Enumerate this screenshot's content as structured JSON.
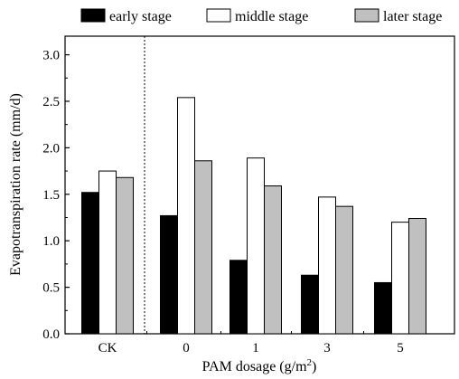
{
  "chart_data": {
    "type": "bar",
    "categories": [
      "CK",
      "0",
      "1",
      "3",
      "5"
    ],
    "series": [
      {
        "name": "early stage",
        "values": [
          1.52,
          1.27,
          0.79,
          0.63,
          0.55
        ],
        "color": "#000000"
      },
      {
        "name": "middle stage",
        "values": [
          1.75,
          2.54,
          1.89,
          1.47,
          1.2
        ],
        "color": "#ffffff"
      },
      {
        "name": "later stage",
        "values": [
          1.68,
          1.86,
          1.59,
          1.37,
          1.24
        ],
        "color": "#c0c0c0"
      }
    ],
    "xlabel": "PAM dosage (g/m",
    "xlabel_sup": "2",
    "xlabel_end": ")",
    "ylabel": "Evapotranspiration rate (mm/d)",
    "ylim": [
      0,
      3.2
    ],
    "yticks": [
      "0.0",
      "0.5",
      "1.0",
      "1.5",
      "2.0",
      "2.5",
      "3.0"
    ],
    "grid": false,
    "legend_position": "top",
    "separator": "dotted vertical line between CK and 0"
  }
}
